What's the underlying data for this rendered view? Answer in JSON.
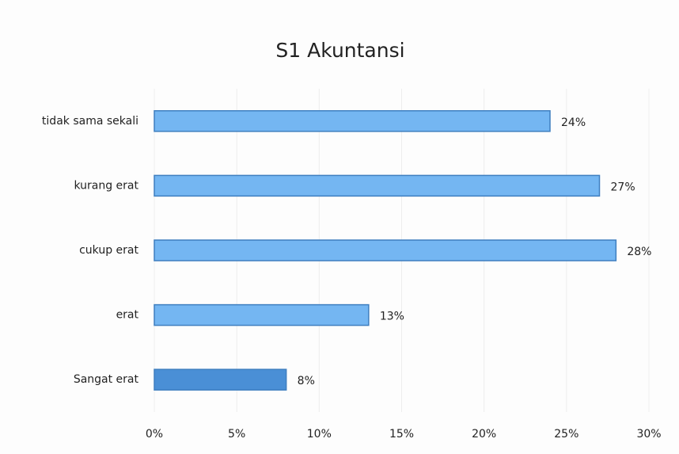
{
  "chart_data": {
    "type": "hbar",
    "title": "S1 Akuntansi",
    "categories": [
      "tidak sama sekali",
      "kurang erat",
      "cukup erat",
      "erat",
      "Sangat erat"
    ],
    "values": [
      24,
      27,
      28,
      13,
      8
    ],
    "value_labels": [
      "24%",
      "27%",
      "28%",
      "13%",
      "8%"
    ],
    "colors": [
      "#74b6f2",
      "#74b6f2",
      "#74b6f2",
      "#74b6f2",
      "#4a8fd6"
    ],
    "xlim": [
      0,
      30
    ],
    "xticks": [
      {
        "value": 0,
        "label": "0%"
      },
      {
        "value": 5,
        "label": "5%"
      },
      {
        "value": 10,
        "label": "10%"
      },
      {
        "value": 15,
        "label": "15%"
      },
      {
        "value": 20,
        "label": "20%"
      },
      {
        "value": 25,
        "label": "25%"
      },
      {
        "value": 30,
        "label": "30%"
      }
    ],
    "grid": true
  }
}
